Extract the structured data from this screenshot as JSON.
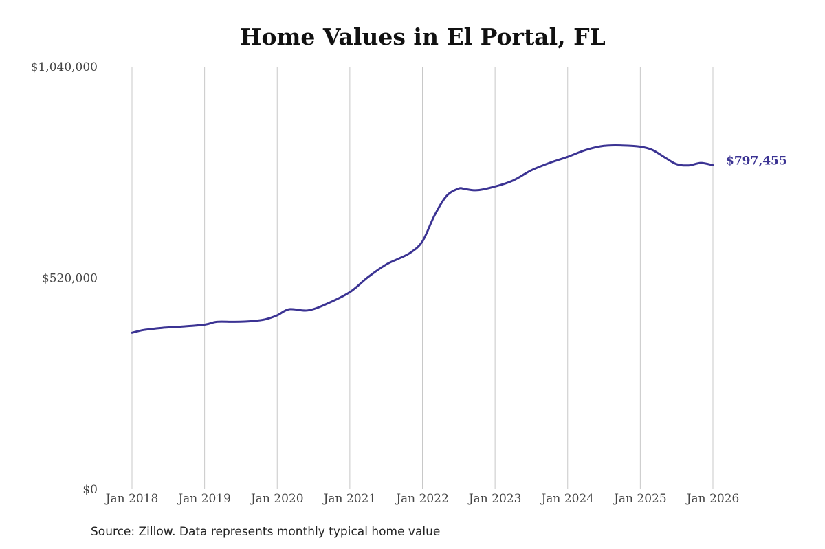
{
  "title": "Home Values in El Portal, FL",
  "source": "Source: Zillow. Data represents monthly typical home value",
  "colors": {
    "line": "#3b3393",
    "grid": "#c8c8c8",
    "text": "#444444"
  },
  "chart_data": {
    "type": "line",
    "title": "Home Values in El Portal, FL",
    "xlabel": "",
    "ylabel": "",
    "ylim": [
      0,
      1040000
    ],
    "y_ticks": [
      0,
      520000,
      1040000
    ],
    "y_tick_labels": [
      "$0",
      "$520,000",
      "$1,040,000"
    ],
    "x_ticks": [
      "Jan 2018",
      "Jan 2019",
      "Jan 2020",
      "Jan 2021",
      "Jan 2022",
      "Jan 2023",
      "Jan 2024",
      "Jan 2025",
      "Jan 2026"
    ],
    "grid": "vertical",
    "end_label": "$797,455",
    "series": [
      {
        "x": [
          "2018-01",
          "2018-03",
          "2018-06",
          "2018-09",
          "2019-01",
          "2019-03",
          "2019-06",
          "2019-09",
          "2019-11",
          "2020-01",
          "2020-03",
          "2020-06",
          "2020-09",
          "2021-01",
          "2021-04",
          "2021-07",
          "2021-09",
          "2021-11",
          "2022-01",
          "2022-03",
          "2022-05",
          "2022-07",
          "2022-08",
          "2022-10",
          "2023-01",
          "2023-04",
          "2023-07",
          "2023-10",
          "2024-01",
          "2024-04",
          "2024-07",
          "2024-10",
          "2025-01",
          "2025-03",
          "2025-05",
          "2025-07",
          "2025-09",
          "2025-11",
          "2026-01"
        ],
        "values": [
          385000,
          392000,
          397000,
          400000,
          405000,
          412000,
          412000,
          414000,
          418000,
          428000,
          443000,
          440000,
          455000,
          485000,
          522000,
          553000,
          567000,
          582000,
          610000,
          674000,
          722000,
          740000,
          739000,
          736000,
          745000,
          760000,
          785000,
          803000,
          818000,
          835000,
          845000,
          846000,
          843000,
          835000,
          817000,
          800000,
          797000,
          803000,
          797455
        ]
      }
    ]
  }
}
